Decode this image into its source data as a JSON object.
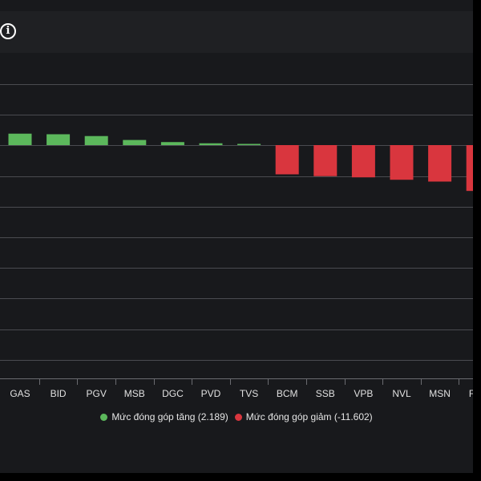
{
  "icons": {
    "info": "info-circle-icon"
  },
  "colors": {
    "positive": "#5cb85c",
    "negative": "#d9363e",
    "grid": "#4a4b50",
    "tick_label": "#e0e0e0",
    "background": "#18191c"
  },
  "legend": {
    "positive_label": "Mức đóng góp tăng (2.189)",
    "negative_label": "Mức đóng góp giảm (-11.602)"
  },
  "chart_data": {
    "type": "bar",
    "title": "",
    "xlabel": "",
    "ylabel": "",
    "categories": [
      "GAS",
      "BID",
      "PGV",
      "MSB",
      "DGC",
      "PVD",
      "TVS",
      "BCM",
      "SSB",
      "VPB",
      "NVL",
      "MSN",
      "FPT"
    ],
    "values": [
      0.38,
      0.36,
      0.3,
      0.17,
      0.1,
      0.06,
      0.04,
      -0.97,
      -1.03,
      -1.07,
      -1.15,
      -1.21,
      -1.52
    ],
    "ylim": [
      -7.7,
      2.0
    ],
    "grid": true,
    "legend_position": "bottom"
  }
}
